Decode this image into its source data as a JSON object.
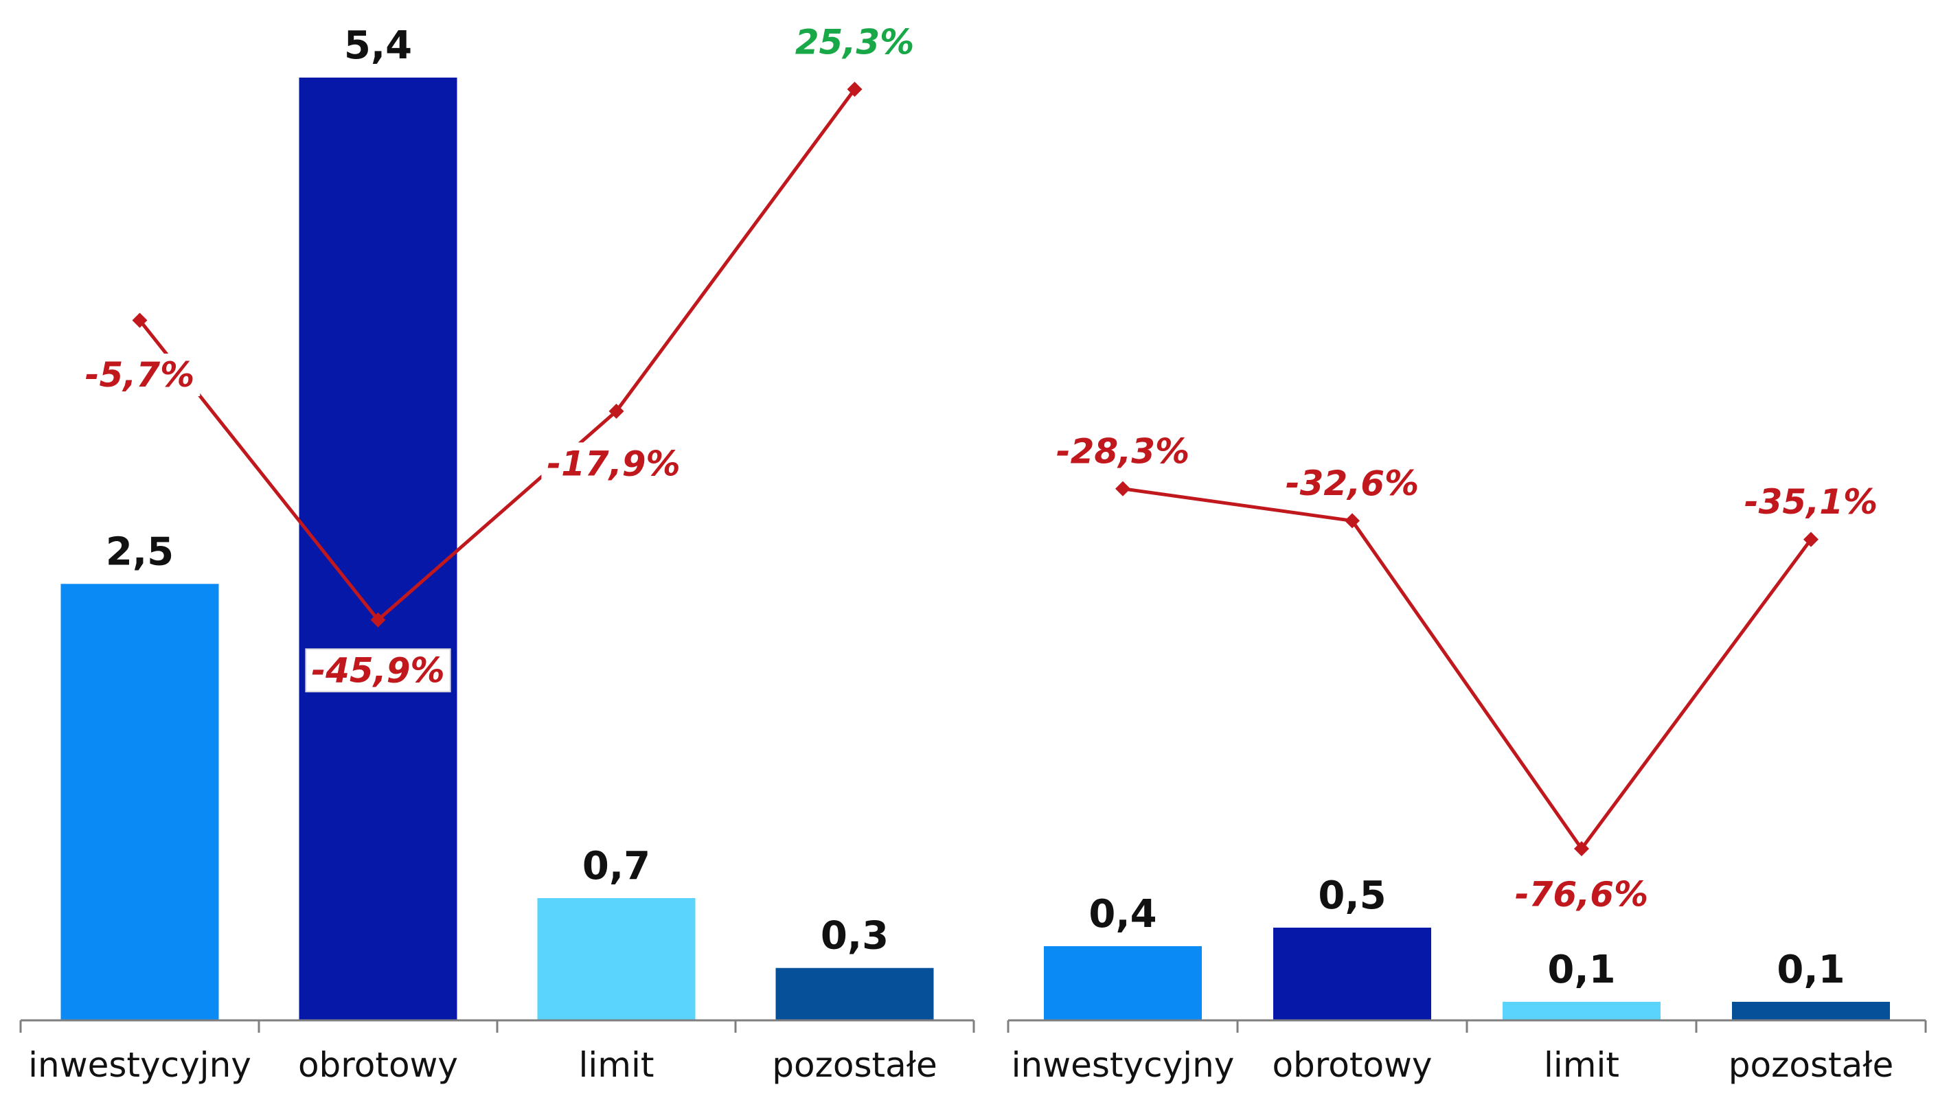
{
  "chart_data": [
    {
      "type": "bar",
      "categories": [
        "inwestycyjny",
        "obrotowy",
        "limit",
        "pozostałe"
      ],
      "series": [
        {
          "values": [
            2.5,
            5.4,
            0.7,
            0.3
          ],
          "value_labels": [
            "2,5",
            "5,4",
            "0,7",
            "0,3"
          ],
          "colors": [
            "#0a8af5",
            "#0518a8",
            "#5ad4fd",
            "#06509a"
          ]
        },
        {
          "values": [
            -5.7,
            -45.9,
            -17.9,
            25.3
          ],
          "value_labels": [
            "-5,7%",
            "-45,9%",
            "-17,9%",
            "25,3%"
          ],
          "label_colors": [
            "#c0181c",
            "#c0181c",
            "#c0181c",
            "#18a848"
          ],
          "line_color": "#c0181c"
        }
      ],
      "title": "",
      "xlabel": "",
      "ylabel": "",
      "ylim": [
        0,
        6
      ],
      "ylim_secondary": [
        -100,
        40
      ],
      "grid": false,
      "legend": "none"
    },
    {
      "type": "bar",
      "categories": [
        "inwestycyjny",
        "obrotowy",
        "limit",
        "pozostałe"
      ],
      "series": [
        {
          "values": [
            0.4,
            0.5,
            0.1,
            0.1
          ],
          "value_labels": [
            "0,4",
            "0,5",
            "0,1",
            "0,1"
          ],
          "colors": [
            "#0a8af5",
            "#0518a8",
            "#5ad4fd",
            "#06509a"
          ]
        },
        {
          "values": [
            -28.3,
            -32.6,
            -76.6,
            -35.1
          ],
          "value_labels": [
            "-28,3%",
            "-32,6%",
            "-76,6%",
            "-35,1%"
          ],
          "label_colors": [
            "#c0181c",
            "#c0181c",
            "#c0181c",
            "#c0181c"
          ],
          "line_color": "#c0181c"
        }
      ],
      "title": "",
      "xlabel": "",
      "ylabel": "",
      "ylim": [
        0,
        1
      ],
      "ylim_secondary": [
        -100,
        40
      ],
      "grid": false,
      "legend": "none"
    }
  ]
}
